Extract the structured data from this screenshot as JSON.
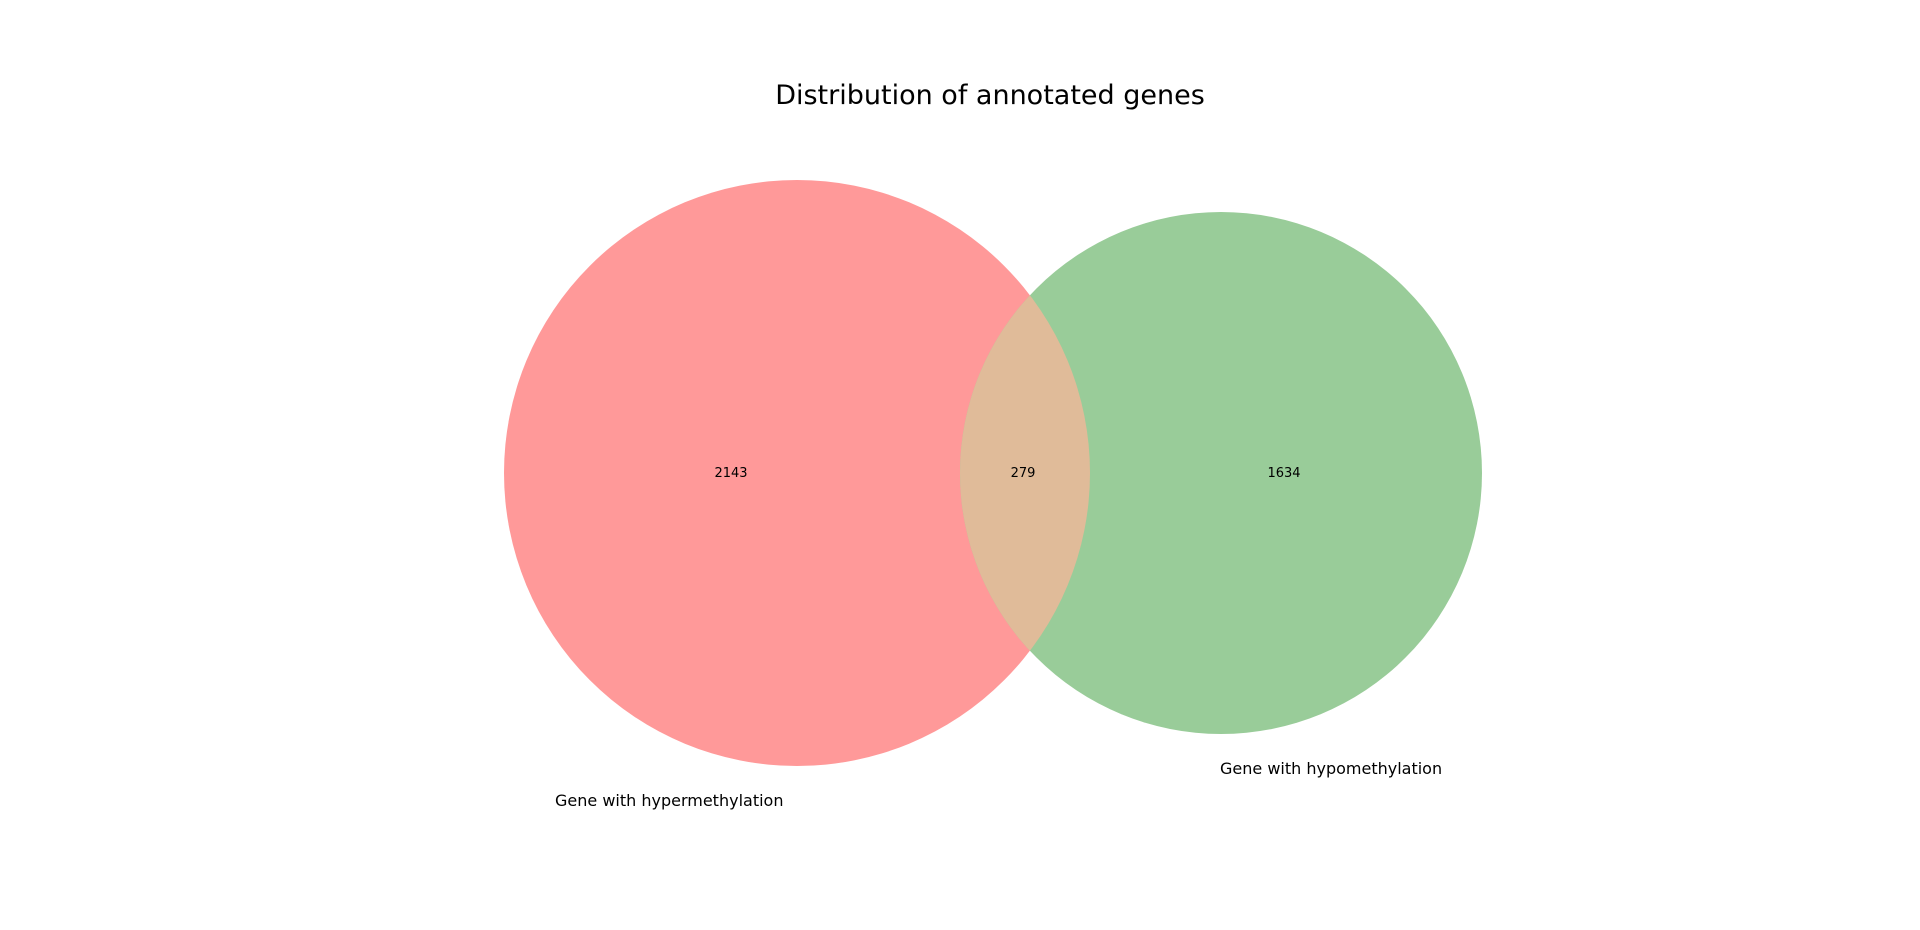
{
  "chart_data": {
    "type": "venn",
    "title": "Distribution of annotated genes",
    "sets": [
      {
        "name": "Gene with hypermethylation",
        "only": 2143,
        "color": "#ff9999"
      },
      {
        "name": "Gene with hypomethylation",
        "only": 1634,
        "color": "#99cc99"
      }
    ],
    "intersection": 279,
    "intersection_color": "#e0bb99"
  }
}
